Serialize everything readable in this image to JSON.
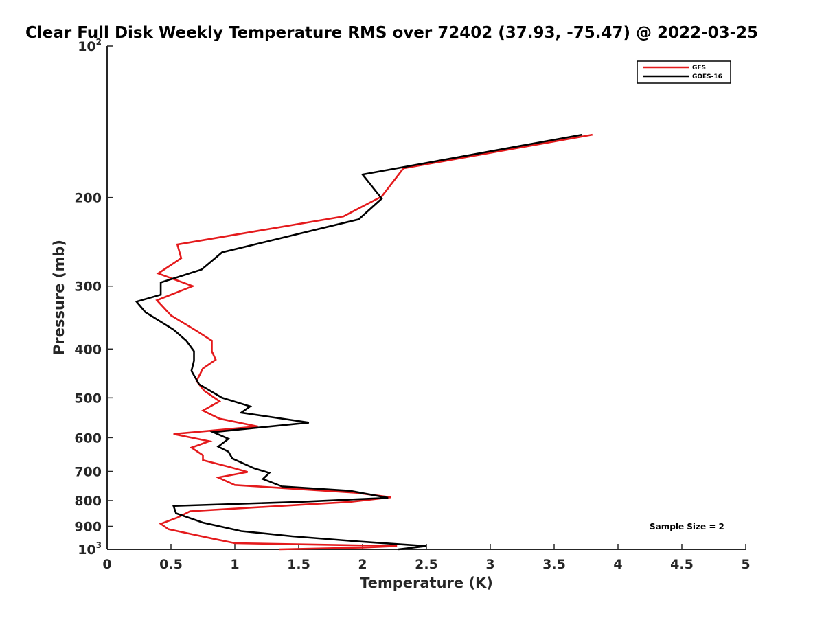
{
  "chart_data": {
    "type": "line",
    "title": "Clear Full Disk Weekly Temperature RMS over 72402 (37.93, -75.47) @ 2022-03-25",
    "xlabel": "Temperature (K)",
    "ylabel": "Pressure (mb)",
    "xlim": [
      0,
      5
    ],
    "ylim": [
      100,
      1000
    ],
    "yscale": "log",
    "y_reversed": true,
    "grid": false,
    "x_ticks": [
      0,
      0.5,
      1,
      1.5,
      2,
      2.5,
      3,
      3.5,
      4,
      4.5,
      5
    ],
    "x_tick_labels": [
      "0",
      "0.5",
      "1",
      "1.5",
      "2",
      "2.5",
      "3",
      "3.5",
      "4",
      "4.5",
      "5"
    ],
    "y_ticks": [
      100,
      200,
      300,
      400,
      500,
      600,
      700,
      800,
      900,
      1000
    ],
    "y_tick_labels": [
      {
        "base": "10",
        "exp": "2"
      },
      {
        "base": "200",
        "exp": ""
      },
      {
        "base": "300",
        "exp": ""
      },
      {
        "base": "400",
        "exp": ""
      },
      {
        "base": "500",
        "exp": ""
      },
      {
        "base": "600",
        "exp": ""
      },
      {
        "base": "700",
        "exp": ""
      },
      {
        "base": "800",
        "exp": ""
      },
      {
        "base": "900",
        "exp": ""
      },
      {
        "base": "10",
        "exp": "3"
      }
    ],
    "legend_position": "top-right",
    "annotation": "Sample Size = 2",
    "series": [
      {
        "name": "GFS",
        "color": "#e41a1c",
        "points": [
          [
            3.8,
            150
          ],
          [
            2.32,
            175
          ],
          [
            2.15,
            199
          ],
          [
            1.85,
            218
          ],
          [
            0.55,
            248
          ],
          [
            0.58,
            264
          ],
          [
            0.4,
            283
          ],
          [
            0.67,
            300
          ],
          [
            0.39,
            320
          ],
          [
            0.5,
            343
          ],
          [
            0.7,
            368
          ],
          [
            0.82,
            385
          ],
          [
            0.82,
            404
          ],
          [
            0.85,
            420
          ],
          [
            0.75,
            437
          ],
          [
            0.7,
            463
          ],
          [
            0.76,
            484
          ],
          [
            0.88,
            508
          ],
          [
            0.75,
            530
          ],
          [
            0.88,
            550
          ],
          [
            1.18,
            570
          ],
          [
            0.52,
            590
          ],
          [
            0.8,
            610
          ],
          [
            0.66,
            628
          ],
          [
            0.75,
            650
          ],
          [
            0.75,
            665
          ],
          [
            0.95,
            685
          ],
          [
            1.1,
            702
          ],
          [
            0.87,
            720
          ],
          [
            1.0,
            745
          ],
          [
            1.95,
            772
          ],
          [
            2.22,
            788
          ],
          [
            1.9,
            805
          ],
          [
            0.65,
            840
          ],
          [
            0.55,
            865
          ],
          [
            0.42,
            890
          ],
          [
            0.48,
            912
          ],
          [
            0.68,
            935
          ],
          [
            0.85,
            955
          ],
          [
            1.0,
            972
          ],
          [
            2.27,
            985
          ],
          [
            2.0,
            992
          ],
          [
            1.35,
            1000
          ]
        ]
      },
      {
        "name": "GOES-16",
        "color": "#000000",
        "points": [
          [
            3.72,
            150
          ],
          [
            2.0,
            180
          ],
          [
            2.15,
            201
          ],
          [
            1.97,
            221
          ],
          [
            0.9,
            257
          ],
          [
            0.74,
            278
          ],
          [
            0.42,
            295
          ],
          [
            0.42,
            312
          ],
          [
            0.23,
            322
          ],
          [
            0.3,
            338
          ],
          [
            0.52,
            366
          ],
          [
            0.62,
            385
          ],
          [
            0.68,
            404
          ],
          [
            0.68,
            422
          ],
          [
            0.66,
            442
          ],
          [
            0.72,
            470
          ],
          [
            0.9,
            500
          ],
          [
            1.12,
            520
          ],
          [
            1.05,
            535
          ],
          [
            1.58,
            560
          ],
          [
            0.83,
            585
          ],
          [
            0.95,
            603
          ],
          [
            0.87,
            625
          ],
          [
            0.95,
            640
          ],
          [
            0.98,
            660
          ],
          [
            1.15,
            690
          ],
          [
            1.27,
            705
          ],
          [
            1.22,
            725
          ],
          [
            1.37,
            750
          ],
          [
            1.9,
            765
          ],
          [
            2.2,
            790
          ],
          [
            1.5,
            805
          ],
          [
            0.52,
            820
          ],
          [
            0.54,
            848
          ],
          [
            0.75,
            885
          ],
          [
            1.05,
            920
          ],
          [
            1.45,
            942
          ],
          [
            1.98,
            965
          ],
          [
            2.5,
            985
          ],
          [
            2.28,
            1000
          ]
        ]
      }
    ]
  }
}
